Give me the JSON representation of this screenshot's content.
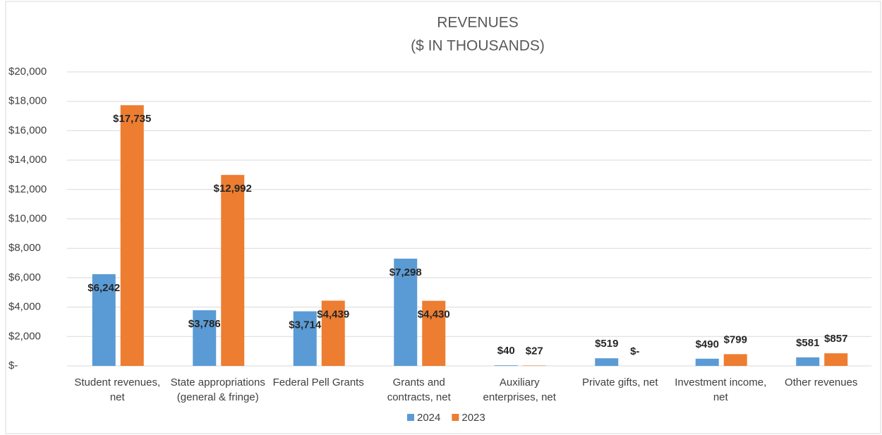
{
  "chart_data": {
    "type": "bar",
    "title": "REVENUES",
    "subtitle": "($ IN THOUSANDS)",
    "categories": [
      "Student revenues, net",
      "State appropriations (general & fringe)",
      "Federal Pell Grants",
      "Grants and contracts, net",
      "Auxiliary enterprises, net",
      "Private gifts, net",
      "Investment income, net",
      "Other revenues"
    ],
    "series": [
      {
        "name": "2024",
        "color": "#5b9bd5",
        "values": [
          6242,
          3786,
          3714,
          7298,
          40,
          519,
          490,
          581
        ],
        "value_labels": [
          "$6,242",
          "$3,786",
          "$3,714",
          "$7,298",
          "$40",
          "$519",
          "$490",
          "$581"
        ]
      },
      {
        "name": "2023",
        "color": "#ed7d31",
        "values": [
          17735,
          12992,
          4439,
          4430,
          27,
          0,
          799,
          857
        ],
        "value_labels": [
          "$17,735",
          "$12,992",
          "$4,439",
          "$4,430",
          "$27",
          "$-",
          "$799",
          "$857"
        ]
      }
    ],
    "ylim": [
      0,
      20000
    ],
    "yticks": [
      {
        "value": 0,
        "label": "$-"
      },
      {
        "value": 2000,
        "label": "$2,000"
      },
      {
        "value": 4000,
        "label": "$4,000"
      },
      {
        "value": 6000,
        "label": "$6,000"
      },
      {
        "value": 8000,
        "label": "$8,000"
      },
      {
        "value": 10000,
        "label": "$10,000"
      },
      {
        "value": 12000,
        "label": "$12,000"
      },
      {
        "value": 14000,
        "label": "$14,000"
      },
      {
        "value": 16000,
        "label": "$16,000"
      },
      {
        "value": 18000,
        "label": "$18,000"
      },
      {
        "value": 20000,
        "label": "$20,000"
      }
    ],
    "grid": true,
    "legend": "bottom"
  }
}
